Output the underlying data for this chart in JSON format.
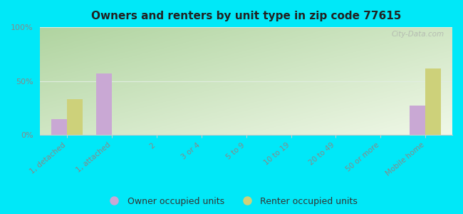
{
  "title": "Owners and renters by unit type in zip code 77615",
  "categories": [
    "1, detached",
    "1, attached",
    "2",
    "3 or 4",
    "5 to 9",
    "10 to 19",
    "20 to 49",
    "50 or more",
    "Mobile home"
  ],
  "owner_values": [
    15,
    57,
    0,
    0,
    0,
    0,
    0,
    0,
    27
  ],
  "renter_values": [
    33,
    0,
    0,
    0,
    0,
    0,
    0,
    0,
    62
  ],
  "owner_color": "#c9a8d4",
  "renter_color": "#cdd17a",
  "ylim": [
    0,
    100
  ],
  "yticks": [
    0,
    50,
    100
  ],
  "ytick_labels": [
    "0%",
    "50%",
    "100%"
  ],
  "bg_color_topleft": "#b0d4a0",
  "bg_color_bottomright": "#f0f8e8",
  "outer_bg": "#00e8f8",
  "bar_width": 0.35,
  "legend_owner": "Owner occupied units",
  "legend_renter": "Renter occupied units",
  "watermark": "City-Data.com",
  "grid_color": "#e0ede0",
  "spine_color": "#cccccc",
  "tick_label_color": "#888888",
  "title_color": "#222222"
}
